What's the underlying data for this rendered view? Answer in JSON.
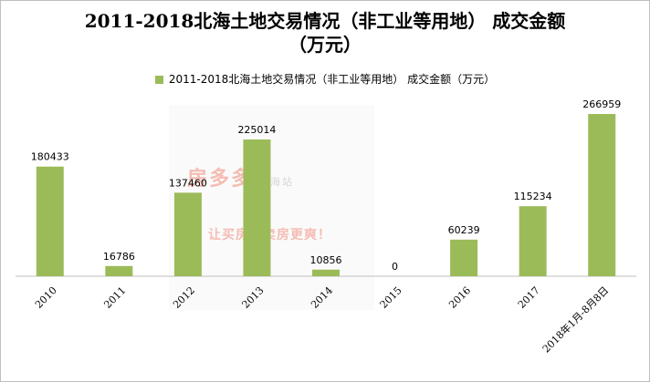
{
  "chart_data": {
    "type": "bar",
    "title_line1": "2011-2018北海土地交易情况（非工业等用地） 成交金额",
    "title_line2": "（万元）",
    "categories": [
      "2010",
      "2011",
      "2012",
      "2013",
      "2014",
      "2015",
      "2016",
      "2017",
      "2018年1月-8月8日"
    ],
    "series": [
      {
        "name": "2011-2018北海土地交易情况（非工业等用地） 成交金额（万元）",
        "values": [
          180433,
          16786,
          137460,
          225014,
          10856,
          0,
          60239,
          115234,
          266959
        ],
        "color": "#9bbb59"
      }
    ],
    "ylim": [
      0,
      300000
    ],
    "grid": false,
    "legend_position": "top",
    "data_labels": true
  },
  "watermark": {
    "brand": "房多多",
    "brand_sub": "北海站",
    "slogan": "让买房，卖房更爽！",
    "accent_color": "#f08a7a"
  }
}
